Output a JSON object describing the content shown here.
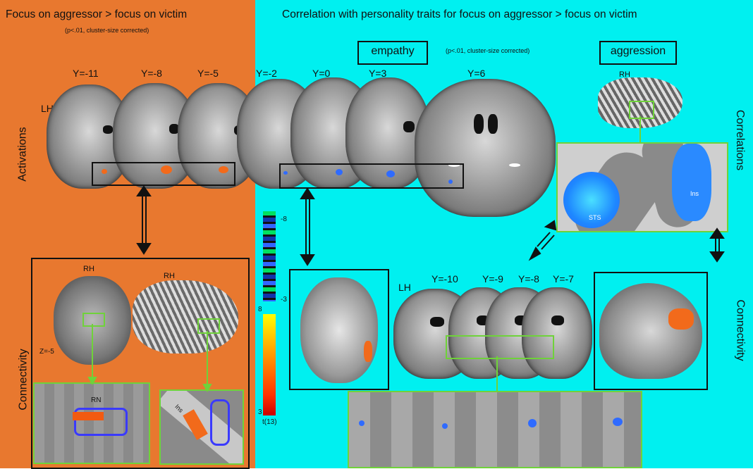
{
  "left_panel": {
    "title": "Focus on aggressor > focus on victim",
    "subtitle": "(p<.01, cluster-size corrected)",
    "y_labels": [
      "Y=-11",
      "Y=-8",
      "Y=-5"
    ],
    "hemisphere_label": "LH",
    "row_labels": {
      "activations": "Activations",
      "connectivity": "Connectivity"
    },
    "connectivity": {
      "rh_label_1": "RH",
      "rh_label_2": "RH",
      "z_label": "Z=-5",
      "rn_label": "RN",
      "ins_label": "Ins"
    }
  },
  "right_panel": {
    "title": "Correlation with personality traits for focus on aggressor > focus on victim",
    "subtitle": "(p<.01, cluster-size corrected)",
    "empathy_label": "empathy",
    "aggression_label": "aggression",
    "y_labels": [
      "Y=-2",
      "Y=0",
      "Y=3",
      "Y=6"
    ],
    "aggression_rh": "RH",
    "sts_label": "STS",
    "ins_label": "Ins",
    "row_labels": {
      "correlations": "Correlations",
      "connectivity": "Connectivity"
    },
    "conn_lh": "LH",
    "conn_y_labels": [
      "Y=-10",
      "Y=-9",
      "Y=-8",
      "Y=-7"
    ]
  },
  "colorbar": {
    "blue_top": "-8",
    "blue_bottom": "-3",
    "warm_top": "8",
    "warm_bottom": "3",
    "unit": "t(13)",
    "colors": {
      "blue": [
        "#00ff66",
        "#00aa33",
        "#1133aa",
        "#2255ff",
        "#4488ff",
        "#66aaff"
      ],
      "warm": [
        "#ffff00",
        "#ffcc00",
        "#ff9900",
        "#ff6600",
        "#ff3300",
        "#cc0000"
      ]
    }
  }
}
